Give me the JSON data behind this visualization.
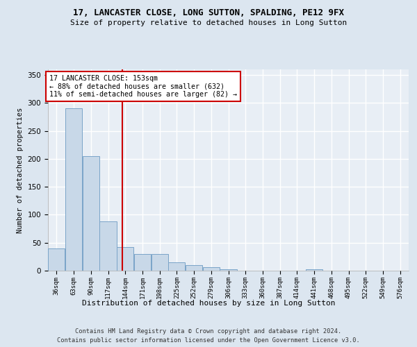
{
  "title1": "17, LANCASTER CLOSE, LONG SUTTON, SPALDING, PE12 9FX",
  "title2": "Size of property relative to detached houses in Long Sutton",
  "xlabel": "Distribution of detached houses by size in Long Sutton",
  "ylabel": "Number of detached properties",
  "footer1": "Contains HM Land Registry data © Crown copyright and database right 2024.",
  "footer2": "Contains public sector information licensed under the Open Government Licence v3.0.",
  "bins": [
    36,
    63,
    90,
    117,
    144,
    171,
    198,
    225,
    252,
    279,
    306,
    333,
    360,
    387,
    414,
    441,
    468,
    495,
    522,
    549,
    576
  ],
  "bar_heights": [
    40,
    290,
    205,
    88,
    42,
    30,
    30,
    15,
    10,
    6,
    3,
    0,
    0,
    0,
    0,
    3,
    0,
    0,
    0,
    0,
    0
  ],
  "bar_color": "#c8d8e8",
  "bar_edge_color": "#7aa4c8",
  "vline_x": 153,
  "vline_color": "#cc0000",
  "annotation_text": "17 LANCASTER CLOSE: 153sqm\n← 88% of detached houses are smaller (632)\n11% of semi-detached houses are larger (82) →",
  "annotation_box_color": "#ffffff",
  "annotation_box_edge": "#cc0000",
  "bg_color": "#dce6f0",
  "plot_bg_color": "#e8eef5",
  "grid_color": "#ffffff",
  "ylim": [
    0,
    360
  ],
  "yticks": [
    0,
    50,
    100,
    150,
    200,
    250,
    300,
    350
  ]
}
